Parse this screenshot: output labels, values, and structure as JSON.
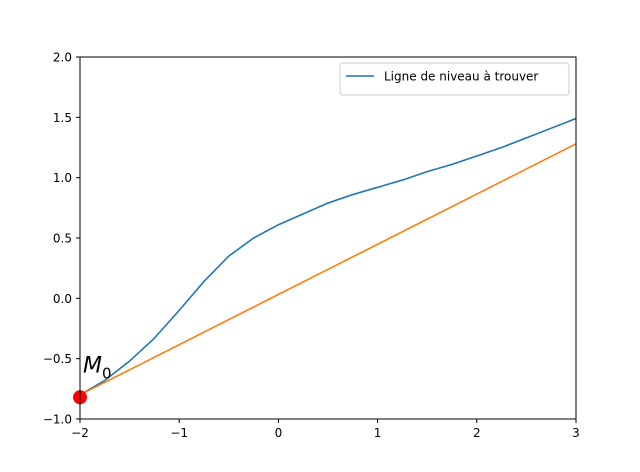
{
  "chart_data": {
    "type": "line",
    "title": "",
    "xlabel": "",
    "ylabel": "",
    "xlim": [
      -2,
      3
    ],
    "ylim": [
      -1.0,
      2.0
    ],
    "x_ticks": [
      -2,
      -1,
      0,
      1,
      2,
      3
    ],
    "x_tick_labels": [
      "−2",
      "−1",
      "0",
      "1",
      "2",
      "3"
    ],
    "y_ticks": [
      -1.0,
      -0.5,
      0.0,
      0.5,
      1.0,
      1.5,
      2.0
    ],
    "y_tick_labels": [
      "−1.0",
      "−0.5",
      "0.0",
      "0.5",
      "1.0",
      "1.5",
      "2.0"
    ],
    "grid": false,
    "legend_position": "upper right",
    "series": [
      {
        "name": "Ligne de niveau à trouver",
        "color": "#1f77b4",
        "x": [
          -2.0,
          -1.75,
          -1.5,
          -1.25,
          -1.0,
          -0.75,
          -0.5,
          -0.25,
          0.0,
          0.25,
          0.5,
          0.75,
          1.0,
          1.25,
          1.5,
          1.75,
          2.0,
          2.25,
          2.5,
          2.75,
          3.0
        ],
        "y": [
          -0.8,
          -0.68,
          -0.52,
          -0.33,
          -0.1,
          0.14,
          0.35,
          0.5,
          0.61,
          0.7,
          0.79,
          0.86,
          0.92,
          0.98,
          1.05,
          1.11,
          1.18,
          1.25,
          1.33,
          1.41,
          1.49
        ]
      },
      {
        "name": "",
        "color": "#ff7f0e",
        "x": [
          -2.0,
          3.0
        ],
        "y": [
          -0.8,
          1.28
        ]
      }
    ],
    "points": [
      {
        "label": "M",
        "subscript": "0",
        "x": -2.0,
        "y": -0.82,
        "color": "#ff0000"
      }
    ]
  }
}
